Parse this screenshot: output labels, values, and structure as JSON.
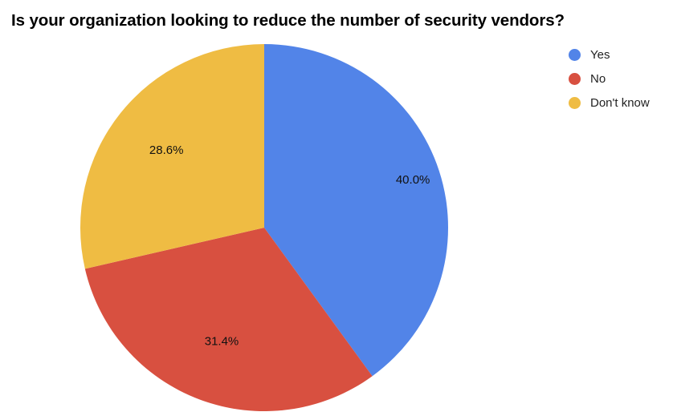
{
  "chart_data": {
    "type": "pie",
    "title": "Is your organization looking to reduce the number of security vendors?",
    "categories": [
      "Yes",
      "No",
      "Don't know"
    ],
    "values": [
      40.0,
      31.4,
      28.6
    ],
    "labels": [
      "40.0%",
      "31.4%",
      "28.6%"
    ],
    "colors": [
      "#5284E8",
      "#D85040",
      "#EFBC43"
    ],
    "legend_position": "right",
    "start_angle": "12 o'clock, clockwise"
  },
  "title": "Is your organization looking to reduce the number of security vendors?",
  "legend": [
    {
      "label": "Yes",
      "color": "#5284E8"
    },
    {
      "label": "No",
      "color": "#D85040"
    },
    {
      "label": "Don't know",
      "color": "#EFBC43"
    }
  ]
}
